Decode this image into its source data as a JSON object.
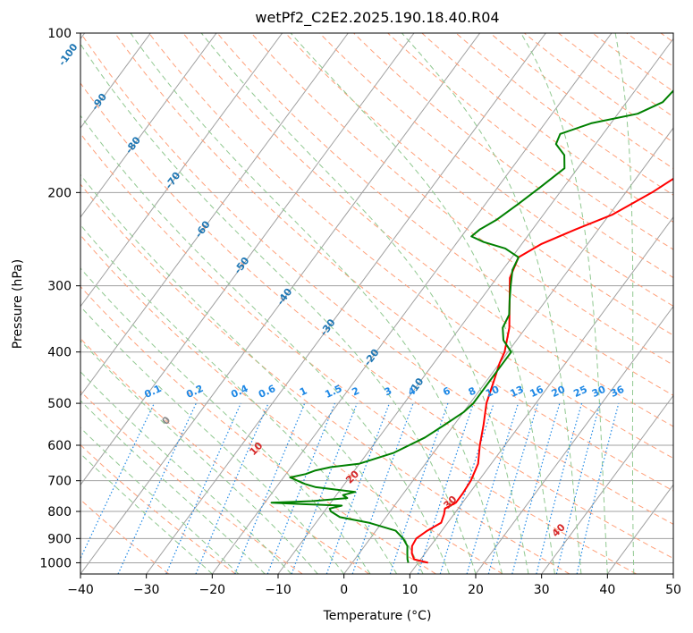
{
  "chart_data": {
    "type": "line",
    "title": "wetPf2_C2E2.2025.190.18.40.R04",
    "xlabel": "Temperature (°C)",
    "ylabel": "Pressure (hPa)",
    "xlim": [
      -40,
      50
    ],
    "ylim": [
      1050,
      100
    ],
    "y_scale": "log",
    "x_ticks": [
      "−40",
      "−30",
      "−20",
      "−10",
      "0",
      "10",
      "20",
      "30",
      "40",
      "50"
    ],
    "y_ticks": [
      {
        "p": 100,
        "label": "100"
      },
      {
        "p": 200,
        "label": "200"
      },
      {
        "p": 300,
        "label": "300"
      },
      {
        "p": 400,
        "label": "400"
      },
      {
        "p": 500,
        "label": "500"
      },
      {
        "p": 600,
        "label": "600"
      },
      {
        "p": 700,
        "label": "700"
      },
      {
        "p": 800,
        "label": "800"
      },
      {
        "p": 900,
        "label": "900"
      },
      {
        "p": 1000,
        "label": "1000"
      }
    ],
    "grid": true,
    "colors": {
      "temperature": "#ff0000",
      "dewpoint": "#008000",
      "isotherm_grid": "#a0a0a0",
      "dry_adiabat": "#ffa07a",
      "moist_adiabat": "#90c890",
      "mixing_ratio": "#1e88e5",
      "isotherm_label": "#1f77b4",
      "adiabat_label": "#d62728"
    },
    "series": [
      {
        "kind": "temperature",
        "points": [
          [
            1000,
            11.5
          ],
          [
            985,
            9
          ],
          [
            960,
            8
          ],
          [
            930,
            7.2
          ],
          [
            900,
            7
          ],
          [
            870,
            7.8
          ],
          [
            840,
            9
          ],
          [
            810,
            8.5
          ],
          [
            790,
            8
          ],
          [
            770,
            9
          ],
          [
            740,
            9
          ],
          [
            700,
            8.8
          ],
          [
            650,
            8
          ],
          [
            600,
            6.2
          ],
          [
            550,
            4.5
          ],
          [
            500,
            2.5
          ],
          [
            450,
            1
          ],
          [
            420,
            0
          ],
          [
            400,
            -0.5
          ],
          [
            360,
            -2.5
          ],
          [
            320,
            -5.5
          ],
          [
            290,
            -8
          ],
          [
            265,
            -9
          ],
          [
            250,
            -7
          ],
          [
            235,
            -3.5
          ],
          [
            220,
            0.5
          ],
          [
            200,
            4
          ],
          [
            180,
            7
          ],
          [
            165,
            9.5
          ],
          [
            150,
            11
          ],
          [
            135,
            14
          ],
          [
            125,
            17
          ],
          [
            115,
            20
          ],
          [
            108,
            21.5
          ],
          [
            100,
            21.5
          ]
        ]
      },
      {
        "kind": "dewpoint",
        "points": [
          [
            1000,
            8.5
          ],
          [
            985,
            8
          ],
          [
            960,
            7.3
          ],
          [
            930,
            6.5
          ],
          [
            900,
            5
          ],
          [
            870,
            3
          ],
          [
            840,
            -2
          ],
          [
            820,
            -7
          ],
          [
            800,
            -9
          ],
          [
            790,
            -9.5
          ],
          [
            780,
            -8
          ],
          [
            775,
            -14
          ],
          [
            770,
            -19
          ],
          [
            765,
            -13
          ],
          [
            755,
            -8
          ],
          [
            745,
            -9
          ],
          [
            735,
            -7.5
          ],
          [
            720,
            -14
          ],
          [
            710,
            -16
          ],
          [
            700,
            -17.5
          ],
          [
            690,
            -19
          ],
          [
            680,
            -17
          ],
          [
            670,
            -16
          ],
          [
            660,
            -14
          ],
          [
            650,
            -10
          ],
          [
            620,
            -6
          ],
          [
            580,
            -3
          ],
          [
            550,
            -1.5
          ],
          [
            520,
            0
          ],
          [
            500,
            0.5
          ],
          [
            470,
            0.5
          ],
          [
            430,
            0.5
          ],
          [
            400,
            0.5
          ],
          [
            380,
            -2
          ],
          [
            360,
            -3.5
          ],
          [
            340,
            -4
          ],
          [
            320,
            -5.5
          ],
          [
            300,
            -7
          ],
          [
            280,
            -8.5
          ],
          [
            265,
            -9
          ],
          [
            255,
            -12
          ],
          [
            248,
            -16
          ],
          [
            242,
            -18.5
          ],
          [
            235,
            -18
          ],
          [
            225,
            -16.5
          ],
          [
            210,
            -15
          ],
          [
            195,
            -13.5
          ],
          [
            180,
            -12
          ],
          [
            170,
            -13.5
          ],
          [
            162,
            -16
          ],
          [
            155,
            -16.5
          ],
          [
            148,
            -13
          ],
          [
            142,
            -7
          ],
          [
            135,
            -4.5
          ],
          [
            125,
            -4
          ],
          [
            118,
            -5
          ],
          [
            112,
            -6.5
          ],
          [
            106,
            -5
          ],
          [
            100,
            1.5
          ]
        ]
      }
    ],
    "isotherm_labels": [
      "-100",
      "-90",
      "-80",
      "-70",
      "-60",
      "-50",
      "-40",
      "-30",
      "-20",
      "-10"
    ],
    "mixing_ratio_labels": [
      "0.1",
      "0.2",
      "0.4",
      "0.6",
      "1",
      "1.5",
      "2",
      "3",
      "4",
      "6",
      "8",
      "10",
      "13",
      "16",
      "20",
      "25",
      "30",
      "36"
    ],
    "dry_adiabat_labels": [
      "0",
      "10",
      "20",
      "30",
      "40"
    ]
  }
}
